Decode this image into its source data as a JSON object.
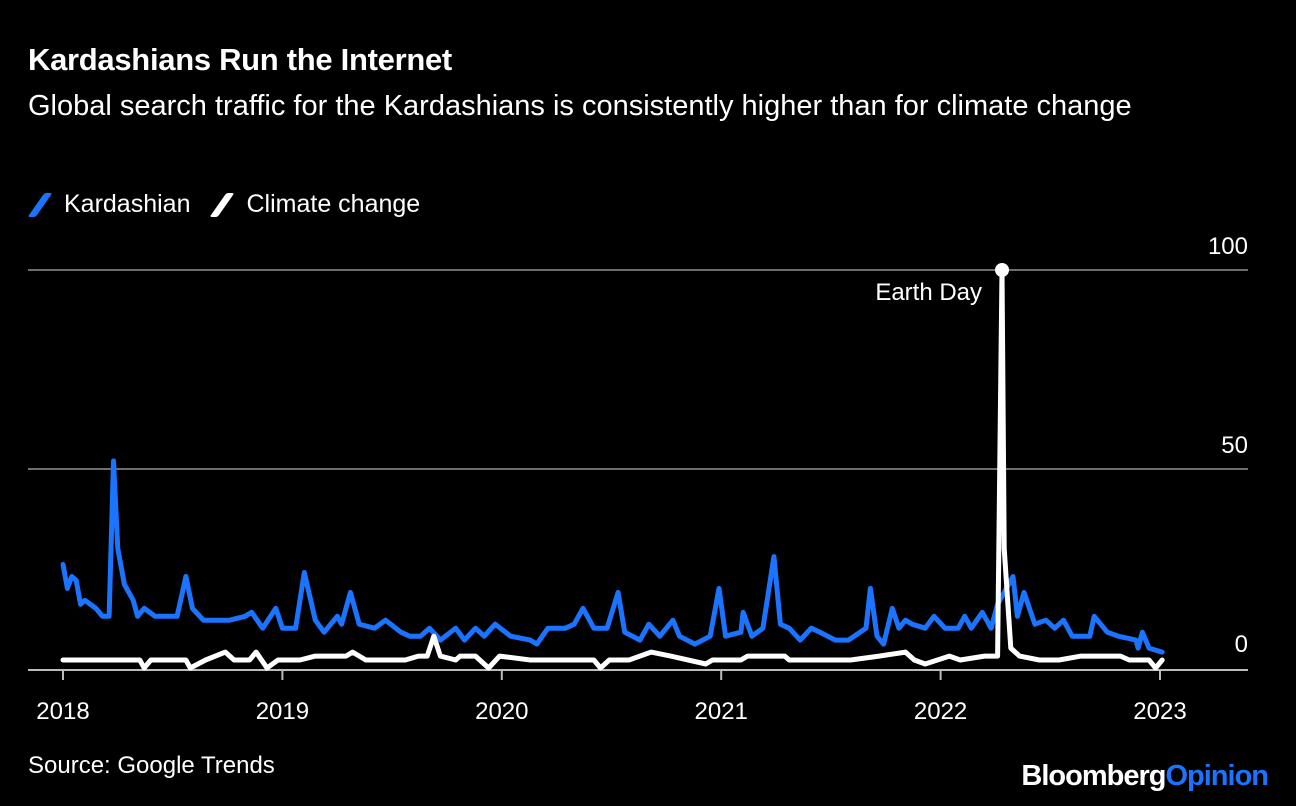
{
  "chart_data": {
    "type": "line",
    "title": "Kardashians Run the Internet",
    "subtitle": "Global search traffic for the Kardashians is consistently higher than for climate change",
    "xlabel": "",
    "ylabel": "",
    "xlim": [
      2018,
      2023.4
    ],
    "ylim": [
      0,
      100
    ],
    "y_ticks": [
      "0",
      "50",
      "100"
    ],
    "x_ticks": [
      "2018",
      "2019",
      "2020",
      "2021",
      "2022",
      "2023"
    ],
    "grid": true,
    "legend_position": "top-left",
    "annotation": {
      "text": "Earth Day",
      "x": 2022.28,
      "y": 100
    },
    "source": "Source: Google Trends",
    "series": [
      {
        "name": "Kardashian",
        "color": "#1a74ff",
        "x": [
          2018.0,
          2018.02,
          2018.04,
          2018.06,
          2018.08,
          2018.1,
          2018.15,
          2018.18,
          2018.21,
          2018.23,
          2018.25,
          2018.28,
          2018.32,
          2018.34,
          2018.37,
          2018.42,
          2018.49,
          2018.52,
          2018.56,
          2018.59,
          2018.64,
          2018.72,
          2018.76,
          2018.83,
          2018.86,
          2018.91,
          2018.97,
          2019.0,
          2019.06,
          2019.1,
          2019.15,
          2019.19,
          2019.25,
          2019.27,
          2019.31,
          2019.35,
          2019.42,
          2019.47,
          2019.54,
          2019.58,
          2019.63,
          2019.67,
          2019.72,
          2019.79,
          2019.83,
          2019.88,
          2019.92,
          2019.97,
          2020.04,
          2020.13,
          2020.16,
          2020.21,
          2020.29,
          2020.33,
          2020.37,
          2020.42,
          2020.48,
          2020.53,
          2020.56,
          2020.63,
          2020.67,
          2020.72,
          2020.78,
          2020.81,
          2020.88,
          2020.95,
          2020.99,
          2021.02,
          2021.09,
          2021.1,
          2021.14,
          2021.19,
          2021.24,
          2021.27,
          2021.31,
          2021.36,
          2021.41,
          2021.45,
          2021.52,
          2021.58,
          2021.66,
          2021.68,
          2021.71,
          2021.74,
          2021.78,
          2021.81,
          2021.84,
          2021.87,
          2021.93,
          2021.97,
          2022.02,
          2022.08,
          2022.11,
          2022.14,
          2022.19,
          2022.23,
          2022.26,
          2022.33,
          2022.35,
          2022.38,
          2022.43,
          2022.48,
          2022.52,
          2022.56,
          2022.6,
          2022.68,
          2022.7,
          2022.76,
          2022.81,
          2022.89,
          2022.9,
          2022.92,
          2022.95,
          2023.01
        ],
        "values": [
          26,
          20,
          23,
          22,
          16,
          17,
          15,
          13,
          13,
          52,
          30,
          21,
          17,
          13,
          15,
          13,
          13,
          13,
          23,
          15,
          12,
          12,
          12,
          13,
          14,
          10,
          15,
          10,
          10,
          24,
          12,
          9,
          13,
          11,
          19,
          11,
          10,
          12,
          9,
          8,
          8,
          10,
          7,
          10,
          7,
          10,
          8,
          11,
          8,
          7,
          6,
          10,
          10,
          11,
          15,
          10,
          10,
          19,
          9,
          7,
          11,
          8,
          12,
          8,
          6,
          8,
          20,
          8,
          9,
          14,
          8,
          10,
          28,
          11,
          10,
          7,
          10,
          9,
          7,
          7,
          10,
          20,
          8,
          6,
          15,
          10,
          12,
          11,
          10,
          13,
          10,
          10,
          13,
          10,
          14,
          10,
          16,
          23,
          13,
          19,
          11,
          12,
          10,
          12,
          8,
          8,
          13,
          9,
          8,
          7,
          5,
          9,
          5,
          4
        ]
      },
      {
        "name": "Climate change",
        "color": "#ffffff",
        "x": [
          2018.0,
          2018.35,
          2018.37,
          2018.4,
          2018.56,
          2018.58,
          2018.65,
          2018.74,
          2018.78,
          2018.85,
          2018.88,
          2018.93,
          2018.98,
          2019.08,
          2019.15,
          2019.29,
          2019.32,
          2019.38,
          2019.56,
          2019.62,
          2019.66,
          2019.69,
          2019.72,
          2019.79,
          2019.81,
          2019.88,
          2019.94,
          2019.99,
          2020.13,
          2020.42,
          2020.45,
          2020.49,
          2020.58,
          2020.68,
          2020.77,
          2020.93,
          2020.96,
          2021.09,
          2021.12,
          2021.29,
          2021.31,
          2021.59,
          2021.72,
          2021.84,
          2021.88,
          2021.93,
          2022.04,
          2022.09,
          2022.2,
          2022.26,
          2022.28,
          2022.29,
          2022.32,
          2022.36,
          2022.45,
          2022.54,
          2022.64,
          2022.82,
          2022.86,
          2022.95,
          2022.98,
          2023.01
        ],
        "values": [
          2,
          2,
          0,
          2,
          2,
          0,
          2,
          4,
          2,
          2,
          4,
          0,
          2,
          2,
          3,
          3,
          4,
          2,
          2,
          3,
          3,
          8,
          3,
          2,
          3,
          3,
          0,
          3,
          2,
          2,
          0,
          2,
          2,
          4,
          3,
          1,
          2,
          2,
          3,
          3,
          2,
          2,
          3,
          4,
          2,
          1,
          3,
          2,
          3,
          3,
          100,
          30,
          5,
          3,
          2,
          2,
          3,
          3,
          2,
          2,
          0,
          2
        ]
      }
    ]
  },
  "branding": {
    "logo_part1": "Bloomberg",
    "logo_part2": "Opinion",
    "logo_color2": "#1a74ff"
  }
}
